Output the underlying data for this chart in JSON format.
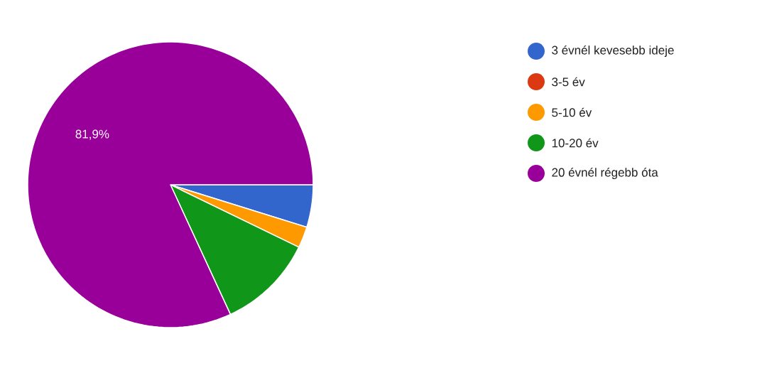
{
  "chart_data": {
    "type": "pie",
    "categories": [
      "3 évnél kevesebb ideje",
      "3-5 év",
      "5-10 év",
      "10-20 év",
      "20 évnél régebb óta"
    ],
    "values": [
      4.8,
      0,
      2.4,
      10.9,
      81.9
    ],
    "colors": [
      "#3366cc",
      "#dc3912",
      "#ff9900",
      "#109618",
      "#990099"
    ],
    "value_labels": [
      null,
      null,
      null,
      null,
      "81,9%"
    ],
    "legend": "right"
  }
}
